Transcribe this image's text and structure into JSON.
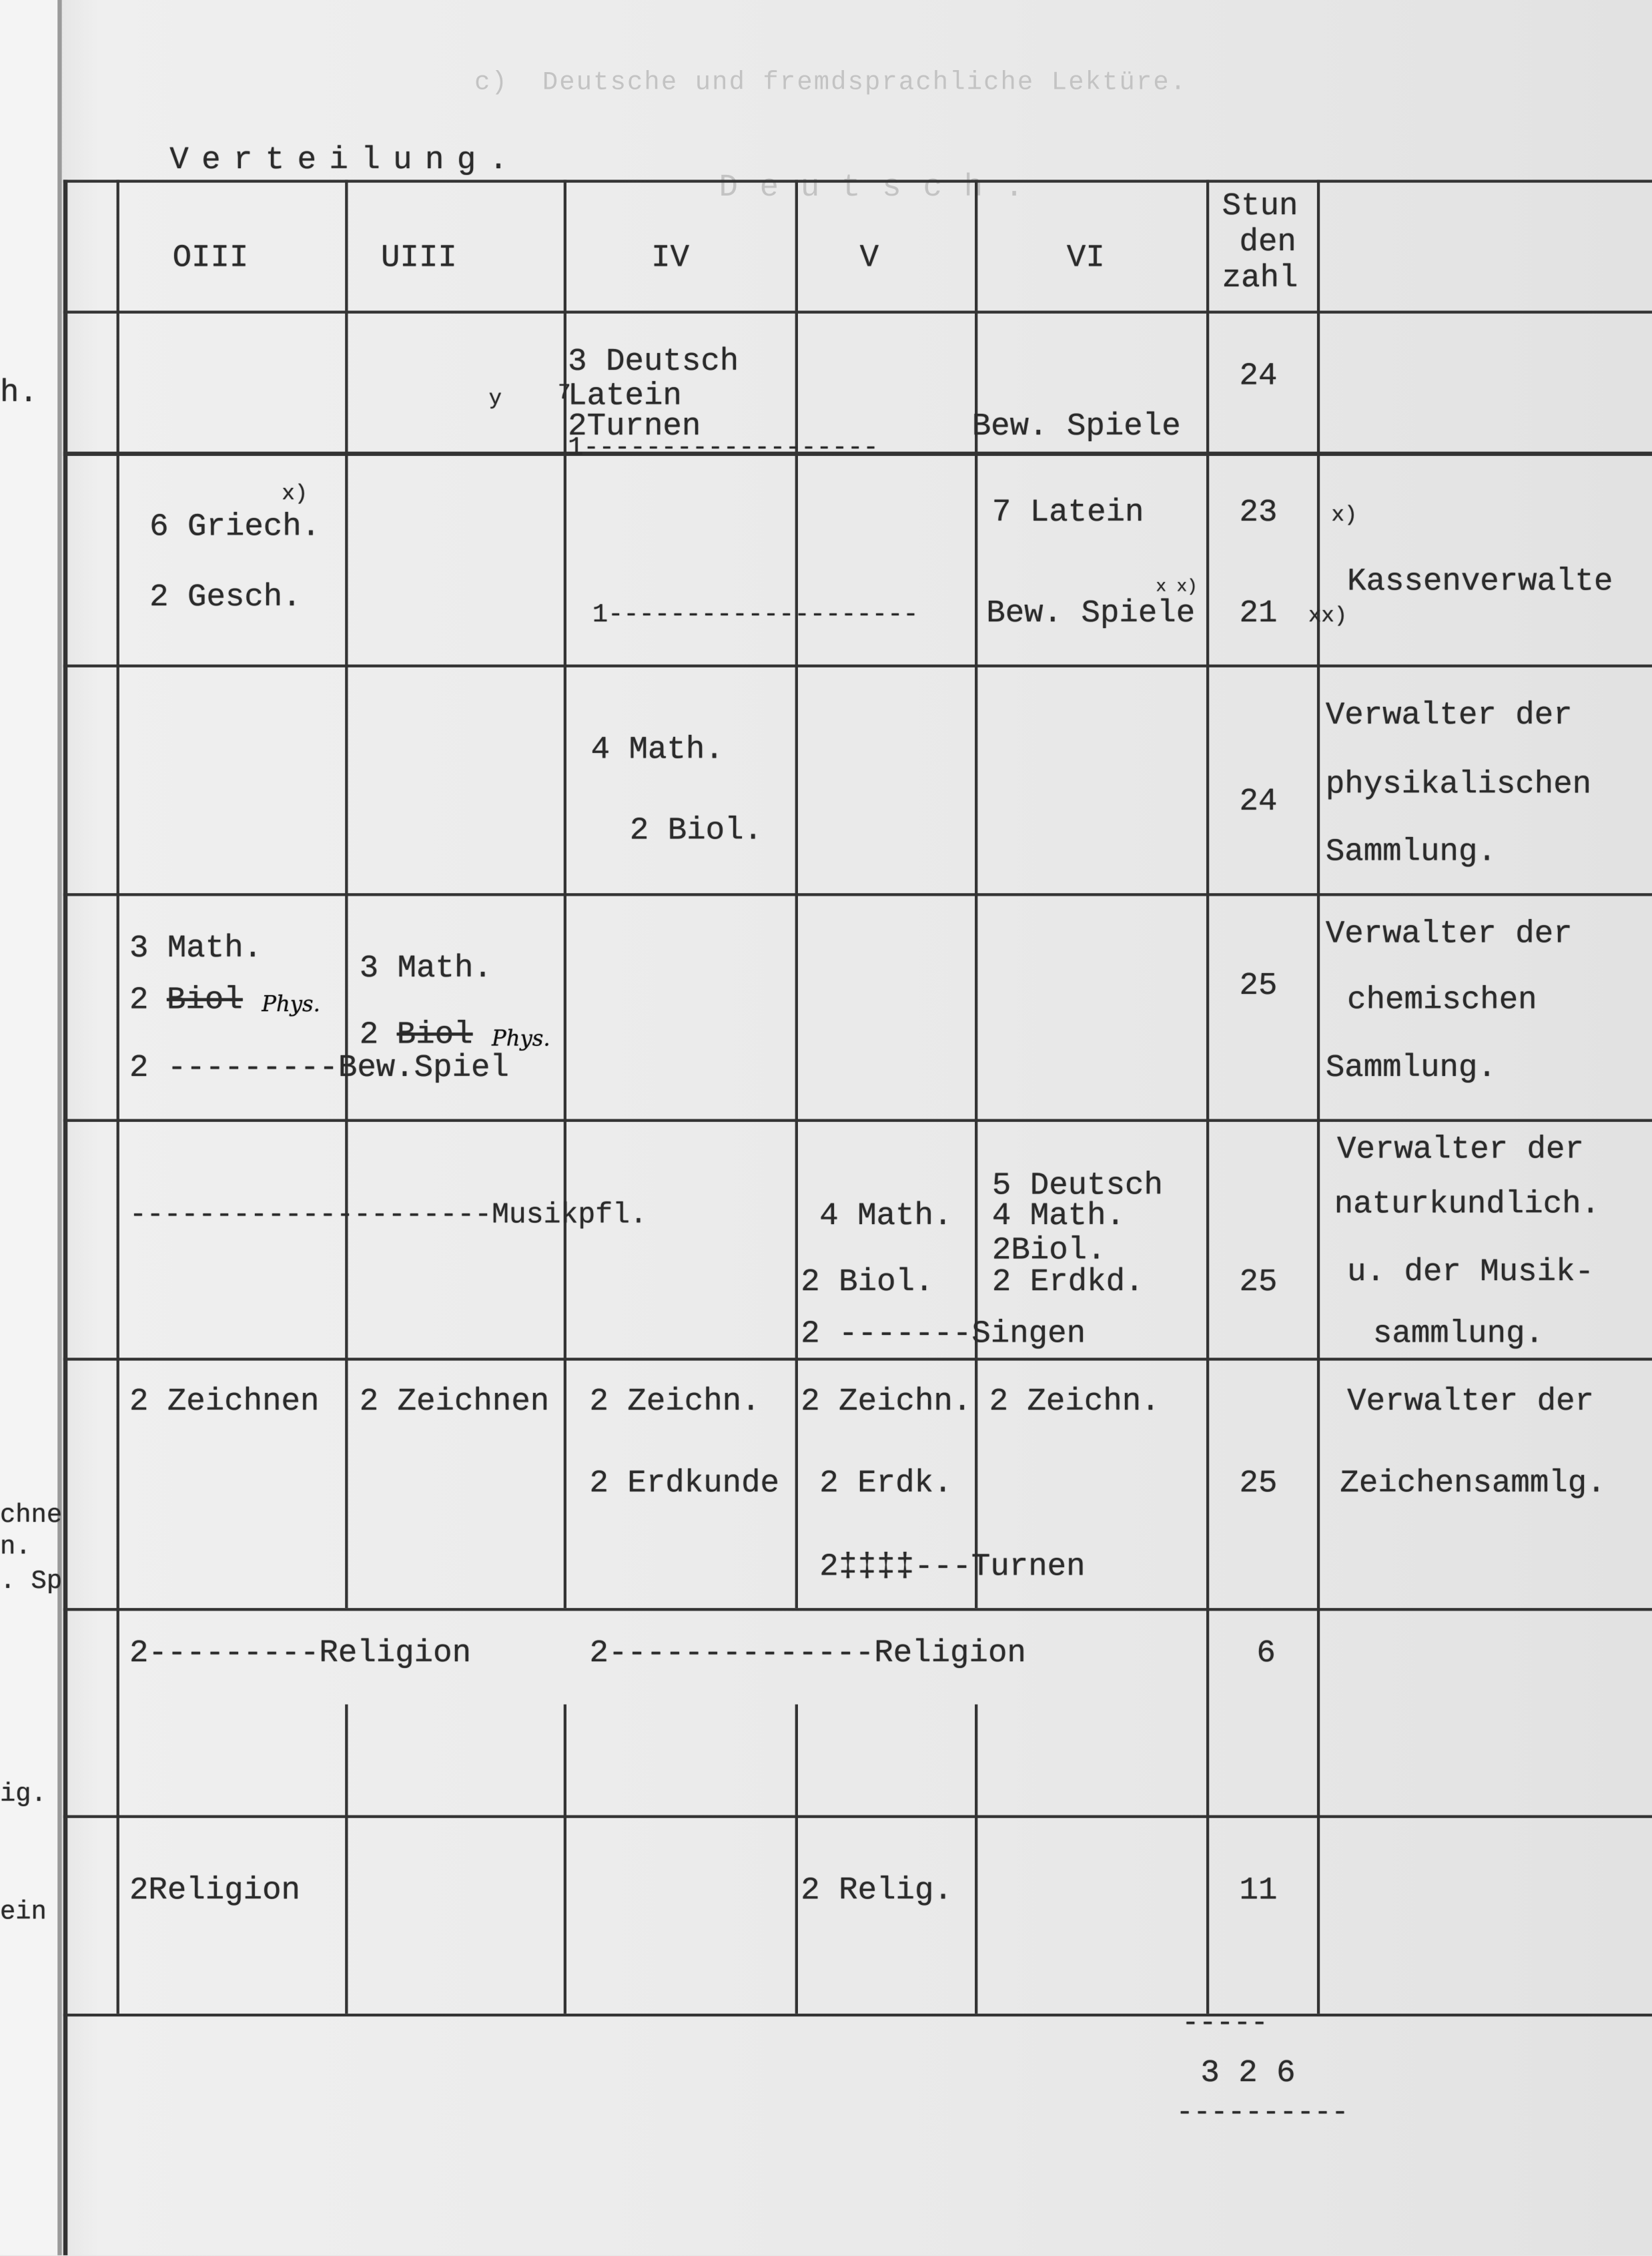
{
  "bleed_through": {
    "heading": "c)  Deutsche und fremdsprachliche Lektüre.",
    "subheading": "D e u t s c h ."
  },
  "left_margin_fragments": [
    "h.",
    "chne",
    "n.",
    ". Sp",
    "ig.",
    "ein"
  ],
  "title": "Verteilung.",
  "header": {
    "columns": [
      "OIII",
      "UIII",
      "IV",
      "V",
      "VI"
    ],
    "hours_label": [
      "Stun",
      "den",
      "zahl"
    ]
  },
  "rows": [
    {
      "iv": [
        "3 Deutsch",
        "Latein",
        "2Turnen",
        "1-------------------"
      ],
      "mark_y": "y",
      "mark_7": "7",
      "vi": "Bew. Spiele",
      "hours": "24"
    },
    {
      "mark": "x)",
      "oiii": [
        "6 Griech.",
        "2 Gesch."
      ],
      "vi": "7 Latein",
      "hours": [
        "23",
        "21"
      ],
      "notes": [
        "x)",
        "xx)",
        "x x)"
      ],
      "leader": "1--------------------",
      "vi2": "Bew. Spiele",
      "duty": "Kassenverwalte"
    },
    {
      "iv": [
        "4 Math.",
        "2 Biol."
      ],
      "hours": "24",
      "duty": [
        "Verwalter der",
        "physikalischen",
        "Sammlung."
      ]
    },
    {
      "oiii": [
        "3 Math.",
        "2 ",
        "Biol",
        "2 ---------Bew.Spiel"
      ],
      "uiii": [
        "3 Math.",
        "2 ",
        "Biol"
      ],
      "handwritten": "Phys.",
      "hours": "25",
      "duty": [
        "Verwalter der",
        "chemischen",
        "Sammlung."
      ]
    },
    {
      "leader": "---------------------Musikpfl.",
      "v": [
        "4 Math.",
        "2 Biol.",
        "2 -------Singen"
      ],
      "vi": [
        "5 Deutsch",
        "4 Math.",
        "2Biol.",
        "2 Erdkd."
      ],
      "hours": "25",
      "duty": [
        "Verwalter der",
        "naturkundlich.",
        "u. der Musik-",
        "sammlung."
      ]
    },
    {
      "zeichnen": [
        "2 Zeichnen",
        "2 Zeichnen",
        "2 Zeichn.",
        "2 Zeichn.",
        "2 Zeichn."
      ],
      "erdkunde": [
        "2 Erdkunde",
        "2 Erdk."
      ],
      "turnen": "2‡‡‡‡---Turnen",
      "hours": "25",
      "duty": [
        "Verwalter der",
        "Zeichensammlg."
      ]
    },
    {
      "left": "2---------Religion",
      "right": "2--------------Religion",
      "hours": "6"
    },
    {
      "oiii": "2Religion",
      "v": "2 Relig.",
      "hours": "11"
    }
  ],
  "total": {
    "rule": "-----",
    "value": "3 2 6",
    "rule2": "----------"
  }
}
